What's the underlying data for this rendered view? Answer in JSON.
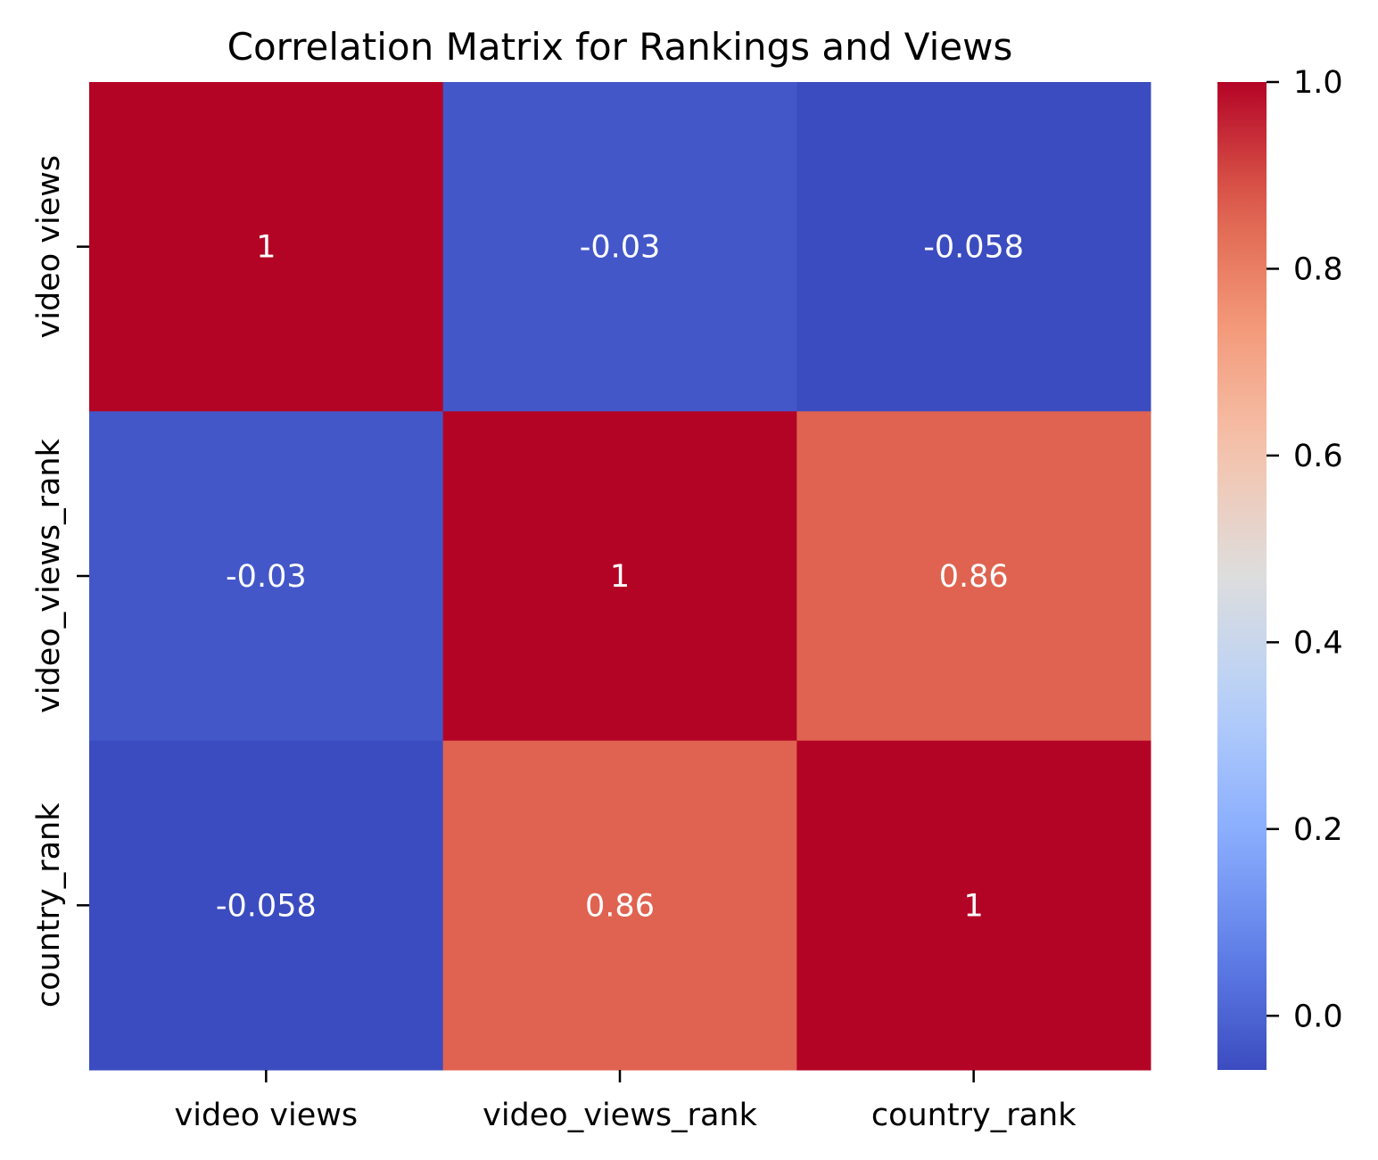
{
  "chart_data": {
    "type": "heatmap",
    "title": "Correlation Matrix for Rankings and Views",
    "xlabel": "",
    "ylabel": "",
    "x_categories": [
      "video views",
      "video_views_rank",
      "country_rank"
    ],
    "y_categories": [
      "video views",
      "video_views_rank",
      "country_rank"
    ],
    "values": [
      [
        1,
        -0.03,
        -0.058
      ],
      [
        -0.03,
        1,
        0.86
      ],
      [
        -0.058,
        0.86,
        1
      ]
    ],
    "annotations": [
      [
        "1",
        "-0.03",
        "-0.058"
      ],
      [
        "-0.03",
        "1",
        "0.86"
      ],
      [
        "-0.058",
        "0.86",
        "1"
      ]
    ],
    "colormap": "coolwarm",
    "colorbar": {
      "range": [
        -0.058,
        1.0
      ],
      "ticks": [
        0.0,
        0.2,
        0.4,
        0.6,
        0.8,
        1.0
      ],
      "tick_labels": [
        "0.0",
        "0.2",
        "0.4",
        "0.6",
        "0.8",
        "1.0"
      ]
    },
    "annotation_color": "#ffffff"
  }
}
